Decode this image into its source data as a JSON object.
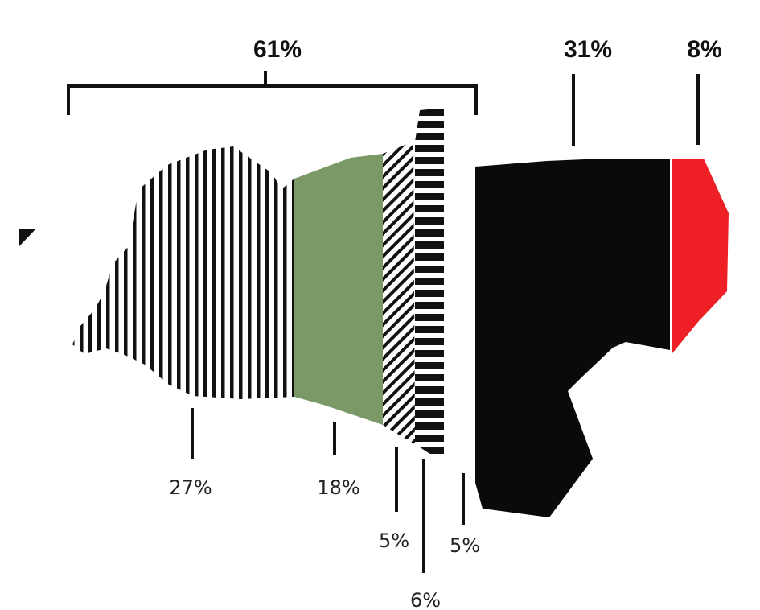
{
  "chart_data": {
    "type": "area",
    "groups": [
      {
        "value": "61%",
        "segments": [
          0,
          1,
          2,
          3,
          4
        ]
      },
      {
        "value": "31%",
        "segments": [
          5
        ]
      },
      {
        "value": "8%",
        "segments": [
          6
        ]
      }
    ],
    "segments": [
      {
        "value": "27%",
        "pattern": "vertical-stripes",
        "color": "#111111"
      },
      {
        "value": "18%",
        "pattern": "solid",
        "color": "#7b9967"
      },
      {
        "value": "5%",
        "pattern": "diagonal-stripes",
        "color": "#111111"
      },
      {
        "value": "6%",
        "pattern": "horizontal-stripes",
        "color": "#111111"
      },
      {
        "value": "5%",
        "pattern": "solid",
        "color": "#ffffff"
      },
      {
        "value": "",
        "pattern": "solid",
        "color": "#0a0a0a"
      },
      {
        "value": "",
        "pattern": "solid",
        "color": "#ee2025"
      }
    ]
  }
}
